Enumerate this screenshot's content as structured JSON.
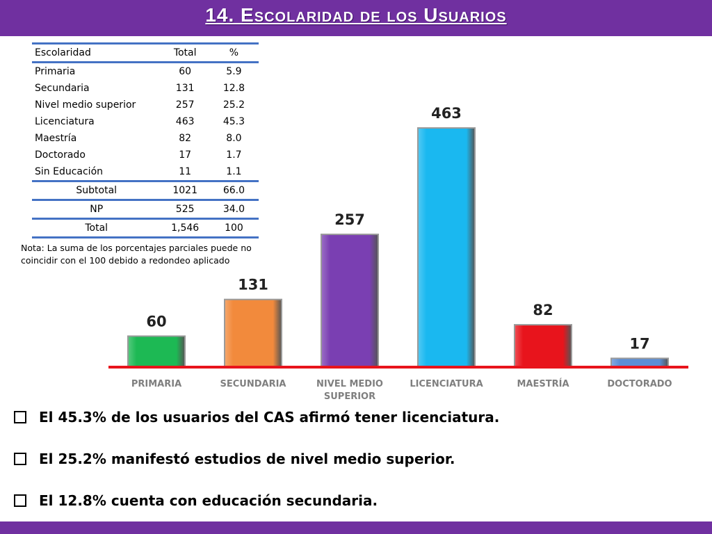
{
  "header": {
    "title": "14. Escolaridad de los Usuarios"
  },
  "table": {
    "columns": [
      "Escolaridad",
      "Total",
      "%"
    ],
    "rows": [
      [
        "Primaria",
        "60",
        "5.9"
      ],
      [
        "Secundaria",
        "131",
        "12.8"
      ],
      [
        "Nivel medio superior",
        "257",
        "25.2"
      ],
      [
        "Licenciatura",
        "463",
        "45.3"
      ],
      [
        "Maestría",
        "82",
        "8.0"
      ],
      [
        "Doctorado",
        "17",
        "1.7"
      ],
      [
        "Sin Educación",
        "11",
        "1.1"
      ]
    ],
    "subtotal": [
      "Subtotal",
      "1021",
      "66.0"
    ],
    "np": [
      "NP",
      "525",
      "34.0"
    ],
    "total": [
      "Total",
      "1,546",
      "100"
    ]
  },
  "note": "Nota: La suma de los porcentajes parciales puede no coincidir con el 100 debido a redondeo aplicado",
  "chart_data": {
    "type": "bar",
    "categories": [
      "PRIMARIA",
      "SECUNDARIA",
      "NIVEL MEDIO SUPERIOR",
      "LICENCIATURA",
      "MAESTRÍA",
      "DOCTORADO"
    ],
    "category_lines": [
      [
        "PRIMARIA"
      ],
      [
        "SECUNDARIA"
      ],
      [
        "NIVEL MEDIO",
        "SUPERIOR"
      ],
      [
        "LICENCIATURA"
      ],
      [
        "MAESTRÍA"
      ],
      [
        "DOCTORADO"
      ]
    ],
    "values": [
      60,
      131,
      257,
      463,
      82,
      17
    ],
    "colors": [
      "#1db954",
      "#f28a3c",
      "#7a3fb2",
      "#1ab8f0",
      "#e8141c",
      "#5b8ed6"
    ],
    "baseline_color": "#e8141c",
    "ylim": [
      0,
      463
    ],
    "title": "",
    "xlabel": "",
    "ylabel": ""
  },
  "bullets": [
    "El 45.3% de los usuarios del CAS afirmó tener licenciatura.",
    "El 25.2% manifestó estudios de nivel medio superior.",
    "El 12.8% cuenta con educación secundaria."
  ]
}
